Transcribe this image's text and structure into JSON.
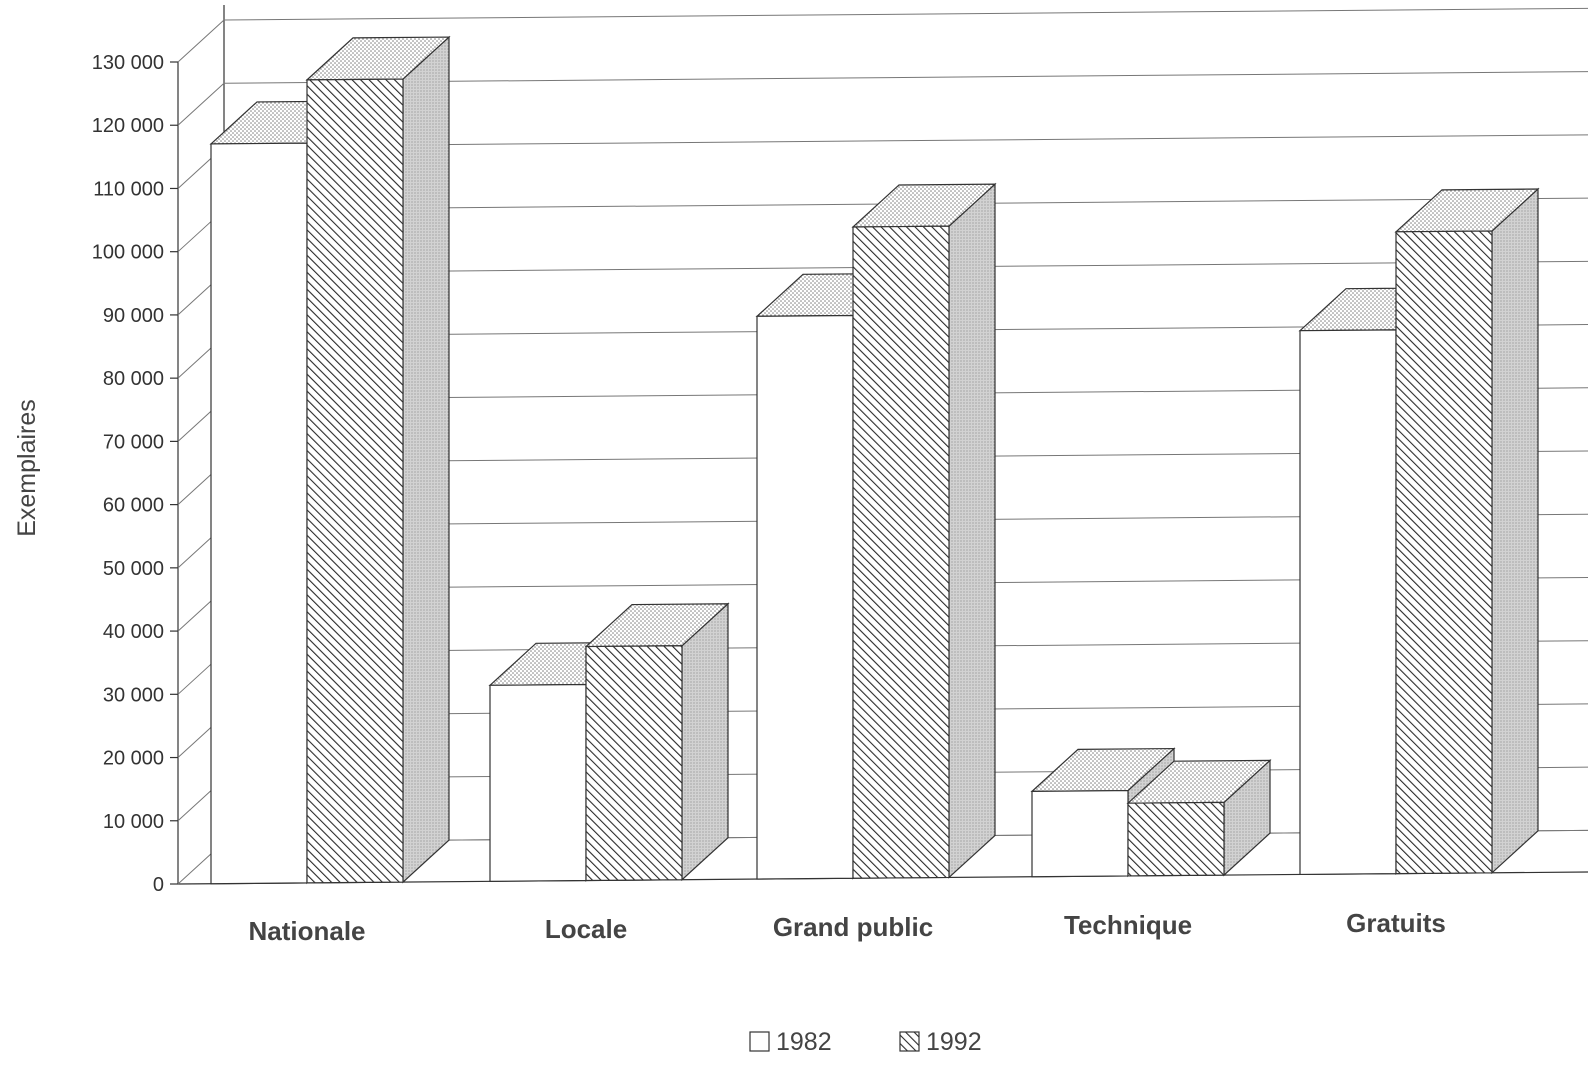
{
  "chart_data": {
    "type": "bar",
    "style": "3d-clustered",
    "title": "",
    "xlabel": "",
    "ylabel": "Exemplaires",
    "ylim": [
      0,
      130000
    ],
    "yticks": [
      0,
      10000,
      20000,
      30000,
      40000,
      50000,
      60000,
      70000,
      80000,
      90000,
      100000,
      110000,
      120000,
      130000
    ],
    "ytick_labels": [
      "0",
      "10 000",
      "20 000",
      "30 000",
      "40 000",
      "50 000",
      "60 000",
      "70 000",
      "80 000",
      "90 000",
      "100 000",
      "110 000",
      "120 000",
      "130 000"
    ],
    "grid": true,
    "legend_position": "bottom-center",
    "categories": [
      "Nationale",
      "Locale",
      "Grand public",
      "Technique",
      "Gratuits"
    ],
    "series": [
      {
        "name": "1982",
        "values": [
          117000,
          31000,
          89000,
          13500,
          86000
        ],
        "fill": "#ffffff",
        "pattern": "none"
      },
      {
        "name": "1992",
        "values": [
          127000,
          37000,
          103000,
          11500,
          101500
        ],
        "fill": "#ffffff",
        "pattern": "diagonal-hatch"
      }
    ],
    "colors": {
      "stroke": "#333333",
      "grid": "#777777",
      "side": "#cfcfcf",
      "top_dots": "#777777"
    }
  }
}
